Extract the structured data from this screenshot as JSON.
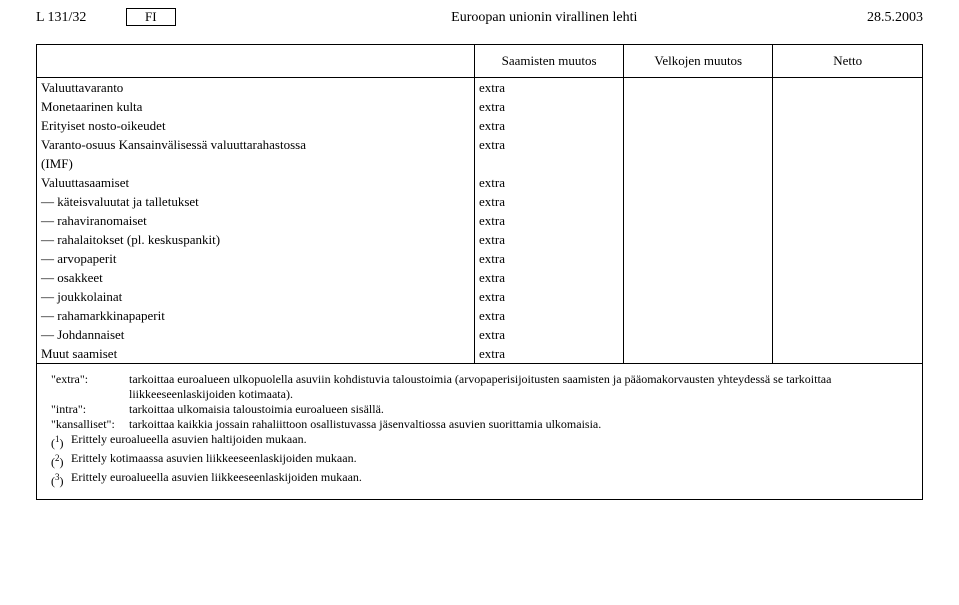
{
  "header": {
    "left": "L 131/32",
    "lang": "FI",
    "center": "Euroopan unionin virallinen lehti",
    "right": "28.5.2003"
  },
  "columns": {
    "c1": "Saamisten muutos",
    "c2": "Velkojen muutos",
    "c3": "Netto"
  },
  "rows": {
    "r0": {
      "label": "Valuuttavaranto",
      "v": "extra"
    },
    "r1": {
      "label": "Monetaarinen kulta",
      "v": "extra"
    },
    "r2": {
      "label": "Erityiset nosto-oikeudet",
      "v": "extra"
    },
    "r3a": {
      "label": "Varanto-osuus Kansainvälisessä valuuttarahastossa",
      "v": "extra"
    },
    "r3b": {
      "label": "(IMF)"
    },
    "r4": {
      "label": "Valuuttasaamiset",
      "v": "extra"
    },
    "r5": {
      "label": "käteisvaluutat ja talletukset",
      "v": "extra"
    },
    "r6": {
      "label": "rahaviranomaiset",
      "v": "extra"
    },
    "r7": {
      "label": "rahalaitokset (pl. keskuspankit)",
      "v": "extra"
    },
    "r8": {
      "label": "arvopaperit",
      "v": "extra"
    },
    "r9": {
      "label": "osakkeet",
      "v": "extra"
    },
    "r10": {
      "label": "joukkolainat",
      "v": "extra"
    },
    "r11": {
      "label": "rahamarkkinapaperit",
      "v": "extra"
    },
    "r12": {
      "label": "Johdannaiset",
      "v": "extra"
    },
    "r13": {
      "label": "Muut saamiset",
      "v": "extra"
    }
  },
  "footnotes": {
    "extra_key": "\"extra\":",
    "extra_val": "tarkoittaa euroalueen ulkopuolella asuviin kohdistuvia taloustoimia (arvopaperisijoitusten saamisten ja pääomakorvausten yhteydessä se tarkoittaa liikkeeseenlaskijoiden kotimaata).",
    "intra_key": "\"intra\":",
    "intra_val": "tarkoittaa ulkomaisia taloustoimia euroalueen sisällä.",
    "kansalliset_key": "\"kansalliset\":",
    "kansalliset_val": "tarkoittaa kaikkia jossain rahaliittoon osallistuvassa jäsenvaltiossa asuvien suorittamia ulkomaisia.",
    "n1_key": "(1)",
    "n1": "Erittely euroalueella asuvien haltijoiden mukaan.",
    "n2_key": "(2)",
    "n2": "Erittely kotimaassa asuvien liikkeeseenlaskijoiden mukaan.",
    "n3_key": "(3)",
    "n3": "Erittely euroalueella asuvien liikkeeseenlaskijoiden mukaan."
  }
}
